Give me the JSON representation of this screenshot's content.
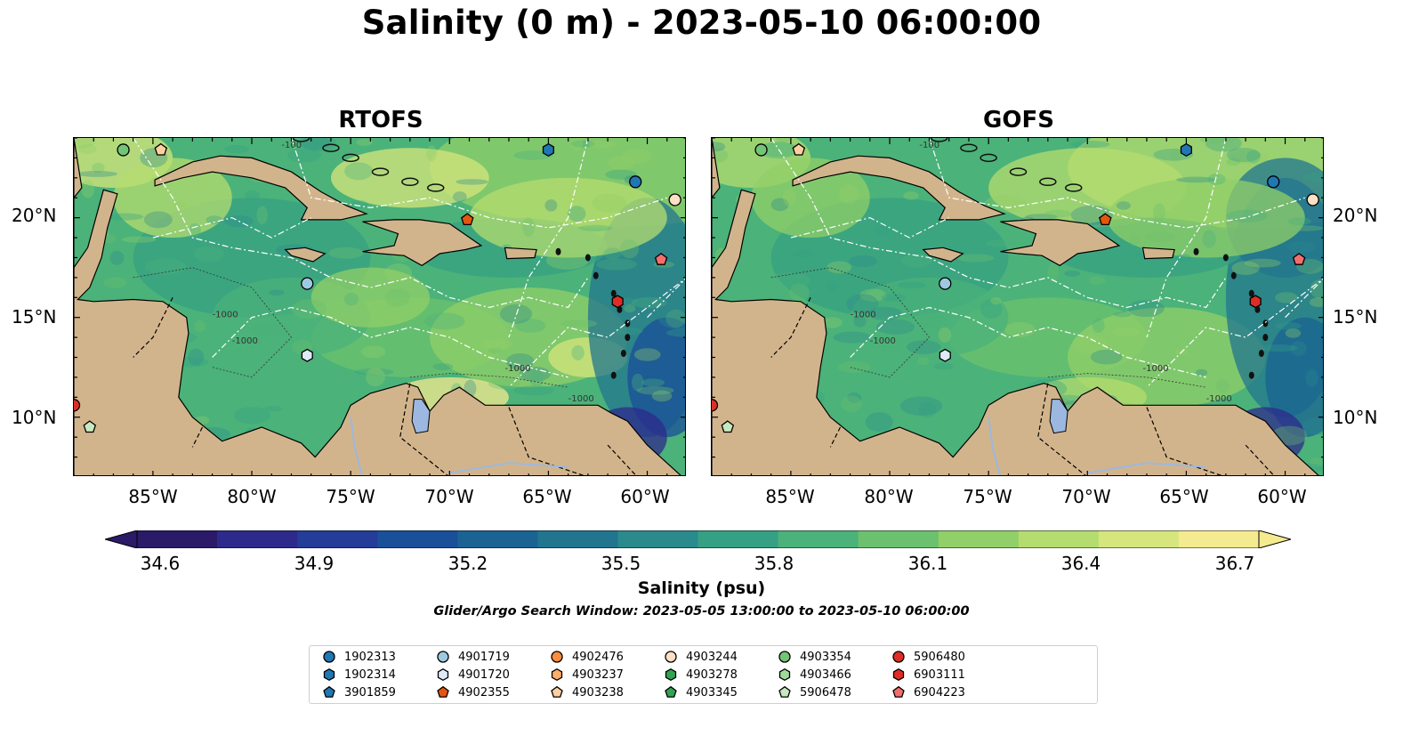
{
  "figure": {
    "suptitle": "Salinity (0 m) - 2023-05-10 06:00:00",
    "search_window": "Glider/Argo Search Window: 2023-05-05 13:00:00 to 2023-05-10 06:00:00"
  },
  "panels": [
    {
      "title": "RTOFS",
      "x_ticks": [
        "85°W",
        "80°W",
        "75°W",
        "70°W",
        "65°W",
        "60°W"
      ],
      "y_ticks": [
        "20°N",
        "15°N",
        "10°N"
      ],
      "y_side": "left"
    },
    {
      "title": "GOFS",
      "x_ticks": [
        "85°W",
        "80°W",
        "75°W",
        "70°W",
        "65°W",
        "60°W"
      ],
      "y_ticks": [
        "20°N",
        "15°N",
        "10°N"
      ],
      "y_side": "right"
    }
  ],
  "map_extent": {
    "lon": [
      -89,
      -58
    ],
    "lat": [
      7,
      24
    ]
  },
  "colorbar": {
    "label": "Salinity (psu)",
    "ticks": [
      "34.6",
      "34.9",
      "35.2",
      "35.5",
      "35.8",
      "36.1",
      "36.4",
      "36.7"
    ],
    "range": [
      34.6,
      36.7
    ],
    "colors": [
      "#2a1a68",
      "#2d2a8c",
      "#233d99",
      "#1a4f99",
      "#1a6393",
      "#21758f",
      "#2a8a8c",
      "#35a083",
      "#4bb27a",
      "#6cc16e",
      "#91cf68",
      "#b5dc6f",
      "#d6e57c",
      "#f4ea8f"
    ],
    "extend": "both"
  },
  "land_color": "#d2b48c",
  "contour_labels": [
    "-100",
    "-1000",
    "-1000",
    "-1000",
    "-1000"
  ],
  "floats": [
    {
      "id": "1902313",
      "marker": "circle",
      "color": "#1f77b4",
      "lon": -60.6,
      "lat": 21.8
    },
    {
      "id": "1902314",
      "marker": "hexagon",
      "color": "#1f77b4",
      "lon": -65.0,
      "lat": 23.4
    },
    {
      "id": "3901859",
      "marker": "pentagon",
      "color": "#1f77b4",
      "lon": null,
      "lat": null
    },
    {
      "id": "4901719",
      "marker": "circle",
      "color": "#9ecae1",
      "lon": -77.2,
      "lat": 16.7
    },
    {
      "id": "4901720",
      "marker": "hexagon",
      "color": "#deebf7",
      "lon": -77.2,
      "lat": 13.1
    },
    {
      "id": "4902355",
      "marker": "pentagon",
      "color": "#e6550d",
      "lon": -69.1,
      "lat": 19.9
    },
    {
      "id": "4902476",
      "marker": "circle",
      "color": "#fd8d3c",
      "lon": null,
      "lat": null
    },
    {
      "id": "4903237",
      "marker": "hexagon",
      "color": "#fdae6b",
      "lon": null,
      "lat": null
    },
    {
      "id": "4903238",
      "marker": "pentagon",
      "color": "#fdd0a2",
      "lon": -84.6,
      "lat": 23.4
    },
    {
      "id": "4903244",
      "marker": "circle",
      "color": "#fde0c5",
      "lon": -58.6,
      "lat": 20.9
    },
    {
      "id": "4903278",
      "marker": "hexagon",
      "color": "#31a354",
      "lon": null,
      "lat": null
    },
    {
      "id": "4903345",
      "marker": "pentagon",
      "color": "#31a354",
      "lon": null,
      "lat": null
    },
    {
      "id": "4903354",
      "marker": "circle",
      "color": "#74c476",
      "lon": -86.5,
      "lat": 23.4
    },
    {
      "id": "4903466",
      "marker": "hexagon",
      "color": "#a1d99b",
      "lon": null,
      "lat": null
    },
    {
      "id": "5906478",
      "marker": "pentagon",
      "color": "#c7e9c0",
      "lon": -88.2,
      "lat": 9.5
    },
    {
      "id": "5906480",
      "marker": "circle",
      "color": "#de2d26",
      "lon": -89.0,
      "lat": 10.6
    },
    {
      "id": "6903111",
      "marker": "hexagon",
      "color": "#de2d26",
      "lon": -61.5,
      "lat": 15.8
    },
    {
      "id": "6904223",
      "marker": "pentagon",
      "color": "#f46d6d",
      "lon": -59.3,
      "lat": 17.9
    }
  ]
}
